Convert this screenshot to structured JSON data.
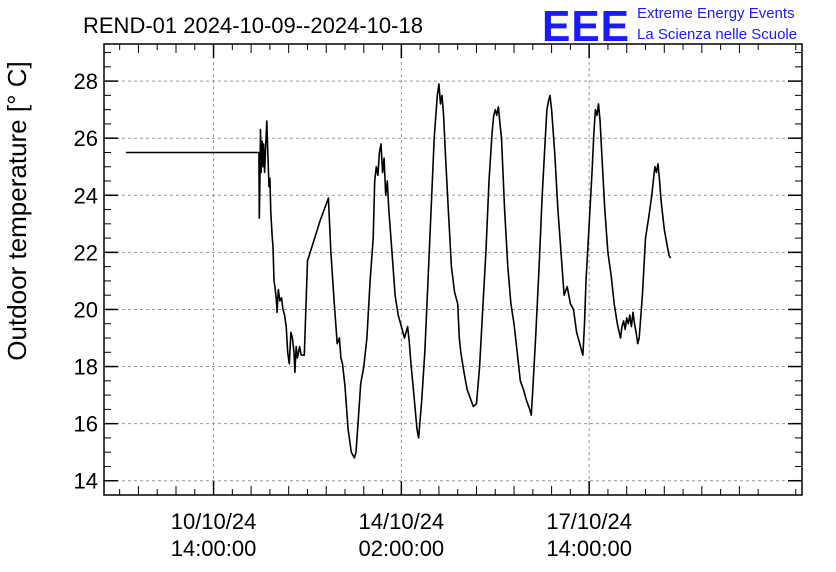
{
  "chart_data": {
    "type": "line",
    "title": "REND-01 2024-10-09--2024-10-18",
    "ylabel": "Outdoor temperature [° C]",
    "xlabel": "",
    "ylim": [
      13.5,
      29.3
    ],
    "yticks": [
      14,
      16,
      18,
      20,
      22,
      24,
      26,
      28
    ],
    "xlim": [
      -35,
      188
    ],
    "xtick_unit": "hours since 2024-10-10 14:00:00",
    "xticks": [
      {
        "value": 0,
        "date": "10/10/24",
        "time": "14:00:00"
      },
      {
        "value": 60,
        "date": "14/10/24",
        "time": "02:00:00"
      },
      {
        "value": 120,
        "date": "17/10/24",
        "time": "14:00:00"
      }
    ],
    "grid": true,
    "logo": {
      "mark": "EEE",
      "line1": "Extreme Energy Events",
      "line2": "La Scienza nelle Scuole"
    },
    "series": [
      {
        "name": "REND-01",
        "color": "#000000",
        "points": [
          [
            -28,
            25.5
          ],
          [
            14.5,
            25.5
          ],
          [
            14.6,
            23.2
          ],
          [
            14.8,
            24.5
          ],
          [
            15,
            26.3
          ],
          [
            15.2,
            24.8
          ],
          [
            15.5,
            25.9
          ],
          [
            15.8,
            25.0
          ],
          [
            16,
            25.8
          ],
          [
            16.3,
            24.8
          ],
          [
            16.6,
            25.6
          ],
          [
            17,
            26.6
          ],
          [
            17.3,
            25.6
          ],
          [
            17.7,
            24.3
          ],
          [
            18,
            24.6
          ],
          [
            18.3,
            23.4
          ],
          [
            18.7,
            22.6
          ],
          [
            19,
            22.2
          ],
          [
            19.3,
            21.0
          ],
          [
            19.6,
            20.8
          ],
          [
            20,
            20.4
          ],
          [
            20.3,
            19.9
          ],
          [
            20.7,
            20.7
          ],
          [
            21.2,
            20.3
          ],
          [
            21.7,
            20.4
          ],
          [
            22.2,
            20.0
          ],
          [
            22.7,
            19.8
          ],
          [
            23.2,
            19.4
          ],
          [
            23.7,
            18.5
          ],
          [
            24.2,
            18.1
          ],
          [
            24.7,
            19.2
          ],
          [
            25.2,
            19.0
          ],
          [
            25.7,
            18.5
          ],
          [
            26,
            17.8
          ],
          [
            26.4,
            18.7
          ],
          [
            26.8,
            18.3
          ],
          [
            27.5,
            18.7
          ],
          [
            28,
            18.4
          ],
          [
            29,
            18.4
          ],
          [
            30,
            21.7
          ],
          [
            34,
            23.1
          ],
          [
            36.7,
            23.9
          ],
          [
            37.5,
            22.0
          ],
          [
            38.5,
            20.3
          ],
          [
            39.5,
            18.8
          ],
          [
            40.2,
            19.0
          ],
          [
            40.7,
            18.3
          ],
          [
            41.2,
            18.1
          ],
          [
            42,
            17.3
          ],
          [
            43,
            15.8
          ],
          [
            44,
            15.0
          ],
          [
            45,
            14.8
          ],
          [
            45.5,
            15.0
          ],
          [
            46.2,
            16.1
          ],
          [
            47,
            17.4
          ],
          [
            48,
            18.0
          ],
          [
            49,
            19.0
          ],
          [
            50,
            21.0
          ],
          [
            51,
            22.5
          ],
          [
            51.5,
            24.5
          ],
          [
            52,
            25.0
          ],
          [
            52.5,
            24.7
          ],
          [
            53,
            25.5
          ],
          [
            53.5,
            25.8
          ],
          [
            54,
            24.8
          ],
          [
            54.5,
            25.3
          ],
          [
            55,
            24.0
          ],
          [
            55.5,
            24.5
          ],
          [
            56,
            23.5
          ],
          [
            57,
            22.0
          ],
          [
            58,
            20.5
          ],
          [
            59,
            19.8
          ],
          [
            60,
            19.4
          ],
          [
            61,
            19.0
          ],
          [
            62,
            19.4
          ],
          [
            62.5,
            18.9
          ],
          [
            63,
            18.2
          ],
          [
            64,
            17.0
          ],
          [
            65,
            15.8
          ],
          [
            65.5,
            15.5
          ],
          [
            66.5,
            16.8
          ],
          [
            67.5,
            18.5
          ],
          [
            68.5,
            21.0
          ],
          [
            69.5,
            23.5
          ],
          [
            70.5,
            26.0
          ],
          [
            71.5,
            27.5
          ],
          [
            72,
            27.9
          ],
          [
            72.5,
            27.2
          ],
          [
            73,
            27.5
          ],
          [
            73.5,
            26.8
          ],
          [
            74,
            25.6
          ],
          [
            75,
            23.5
          ],
          [
            76,
            21.5
          ],
          [
            77,
            20.6
          ],
          [
            78,
            20.2
          ],
          [
            78.5,
            19.0
          ],
          [
            79,
            18.5
          ],
          [
            80,
            17.8
          ],
          [
            81,
            17.2
          ],
          [
            82,
            16.9
          ],
          [
            83,
            16.6
          ],
          [
            84,
            16.7
          ],
          [
            85,
            18.0
          ],
          [
            86,
            20.0
          ],
          [
            87,
            22.0
          ],
          [
            88,
            24.5
          ],
          [
            89,
            26.2
          ],
          [
            89.5,
            26.8
          ],
          [
            90,
            27.0
          ],
          [
            90.5,
            26.8
          ],
          [
            91,
            27.1
          ],
          [
            91.5,
            26.5
          ],
          [
            92,
            26.0
          ],
          [
            93,
            23.5
          ],
          [
            94,
            21.5
          ],
          [
            95,
            20.2
          ],
          [
            96,
            19.5
          ],
          [
            97,
            18.5
          ],
          [
            98,
            17.5
          ],
          [
            99,
            17.2
          ],
          [
            100,
            16.8
          ],
          [
            101,
            16.5
          ],
          [
            101.5,
            16.3
          ],
          [
            102,
            17.2
          ],
          [
            103,
            19.2
          ],
          [
            104,
            21.5
          ],
          [
            105,
            24.0
          ],
          [
            106,
            26.0
          ],
          [
            106.5,
            27.0
          ],
          [
            107,
            27.3
          ],
          [
            107.5,
            27.5
          ],
          [
            108,
            27.0
          ],
          [
            109,
            25.5
          ],
          [
            110,
            23.5
          ],
          [
            111,
            22.0
          ],
          [
            112,
            20.5
          ],
          [
            113,
            20.8
          ],
          [
            114,
            20.2
          ],
          [
            115,
            20.0
          ],
          [
            116,
            19.2
          ],
          [
            117,
            18.8
          ],
          [
            117.5,
            18.6
          ],
          [
            118,
            18.4
          ],
          [
            118.5,
            19.5
          ],
          [
            119,
            21.0
          ],
          [
            120,
            23.0
          ],
          [
            121,
            25.0
          ],
          [
            121.5,
            26.2
          ],
          [
            122,
            27.0
          ],
          [
            122.5,
            26.8
          ],
          [
            123,
            27.2
          ],
          [
            123.5,
            26.6
          ],
          [
            124,
            25.5
          ],
          [
            125,
            23.5
          ],
          [
            126,
            22.0
          ],
          [
            127,
            21.2
          ],
          [
            128,
            20.2
          ],
          [
            129,
            19.5
          ],
          [
            130,
            19.0
          ],
          [
            130.5,
            19.4
          ],
          [
            131,
            19.6
          ],
          [
            131.5,
            19.3
          ],
          [
            132,
            19.7
          ],
          [
            132.5,
            19.5
          ],
          [
            133,
            19.8
          ],
          [
            133.5,
            19.4
          ],
          [
            134,
            19.9
          ],
          [
            134.5,
            19.5
          ],
          [
            135,
            19.2
          ],
          [
            135.5,
            18.8
          ],
          [
            136,
            19.0
          ],
          [
            137,
            20.5
          ],
          [
            138,
            22.5
          ],
          [
            139,
            23.2
          ],
          [
            140,
            24.0
          ],
          [
            140.5,
            24.5
          ],
          [
            141,
            25.0
          ],
          [
            141.5,
            24.8
          ],
          [
            142,
            25.1
          ],
          [
            142.5,
            24.5
          ],
          [
            143,
            23.8
          ],
          [
            144,
            22.8
          ],
          [
            145,
            22.2
          ],
          [
            145.5,
            21.9
          ],
          [
            146,
            21.8
          ]
        ]
      }
    ]
  }
}
